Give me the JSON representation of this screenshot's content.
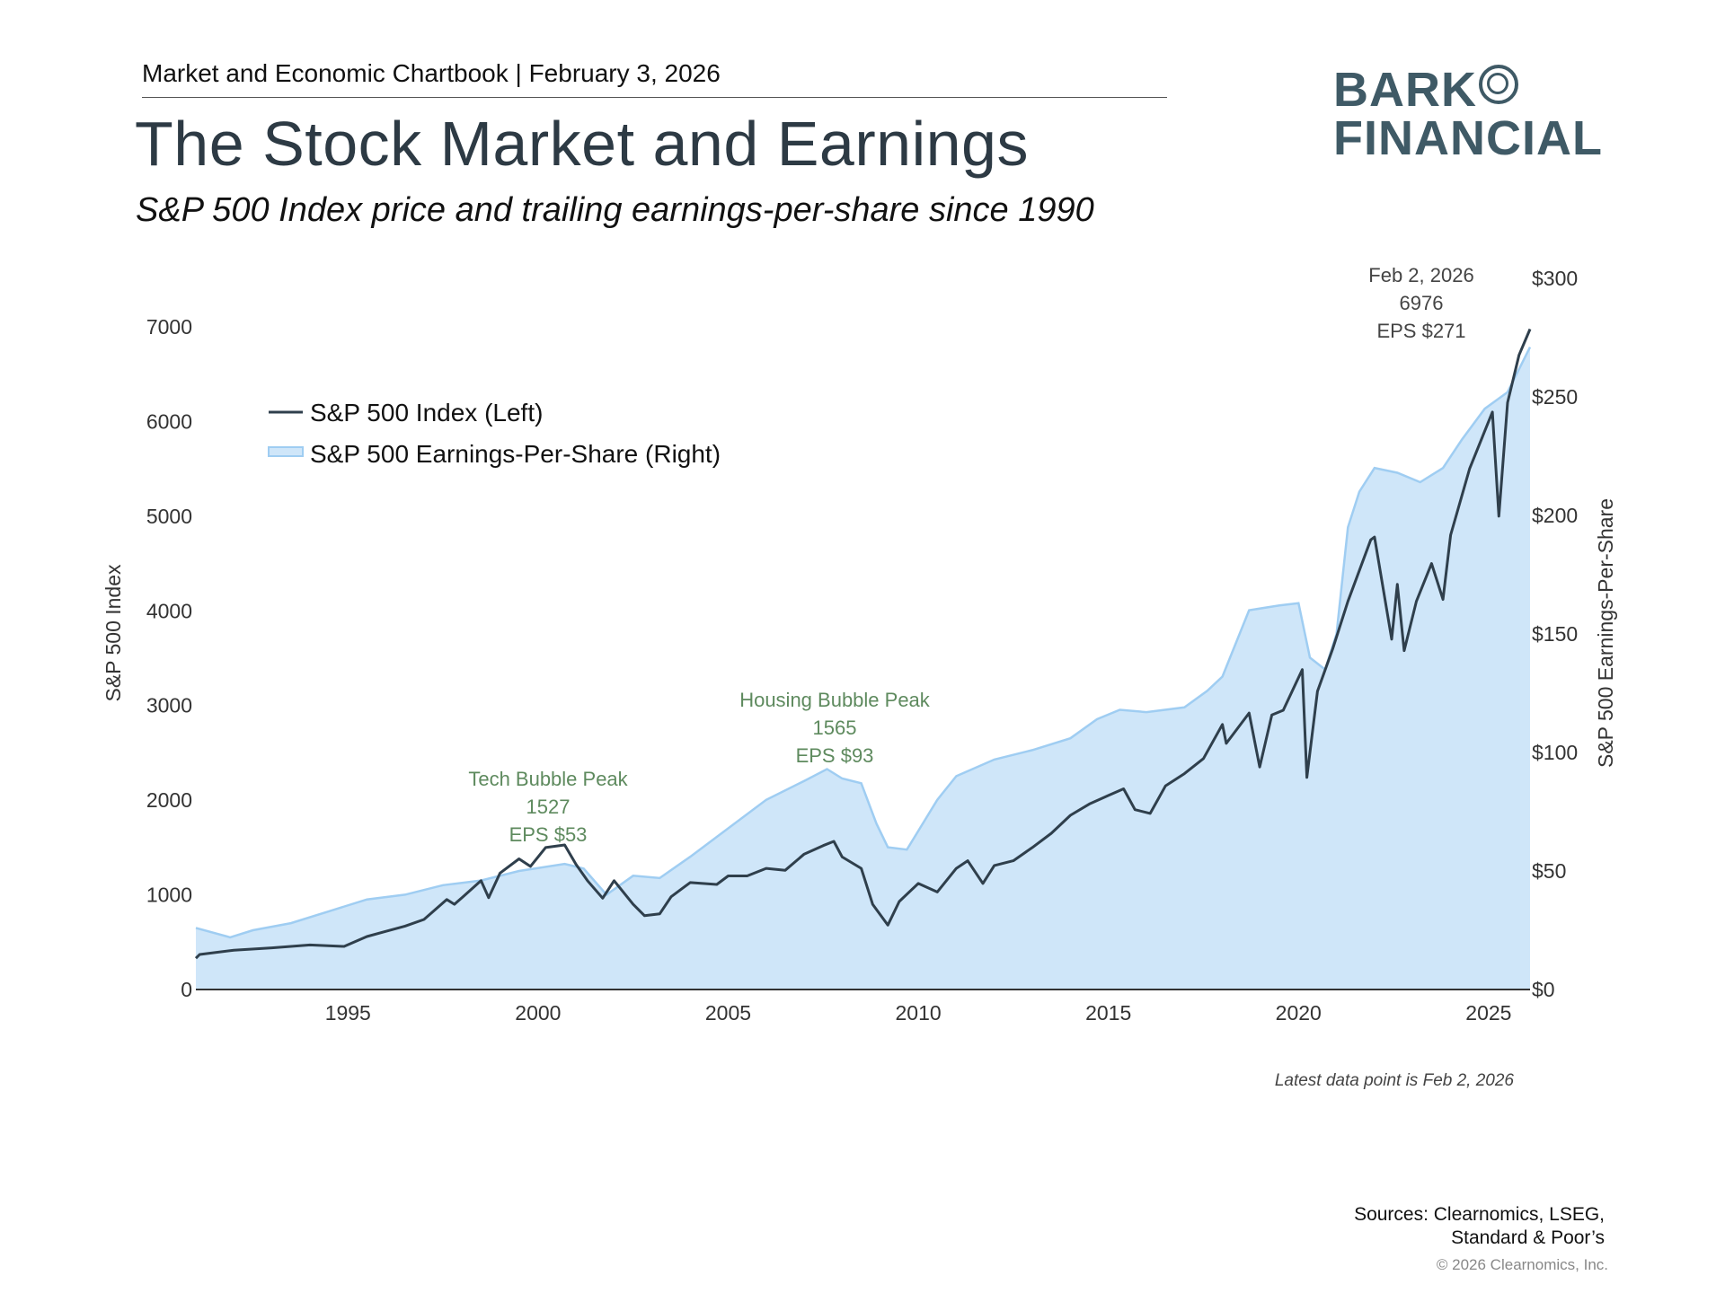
{
  "header": {
    "chartbook": "Market and Economic Chartbook | February 3, 2026",
    "title": "The Stock Market and Earnings",
    "subtitle": "S&P 500 Index price and trailing earnings-per-share since 1990"
  },
  "logo": {
    "line1": "BARK",
    "line2": "FINANCIAL"
  },
  "footer": {
    "latest": "Latest data point is Feb 2, 2026",
    "sources_line1": "Sources: Clearnomics, LSEG,",
    "sources_line2": "Standard & Poor’s",
    "copyright": "© 2026 Clearnomics, Inc."
  },
  "colors": {
    "index_line": "#2f3f4c",
    "eps_fill": "#cfe6f9",
    "eps_line": "#9fcdf2",
    "annotation": "#5e8a5e"
  },
  "chart_data": {
    "type": "line",
    "xlabel": "",
    "ylabel": "S&P 500 Index",
    "ylabel_right": "S&P 500 Earnings-Per-Share",
    "xlim": [
      1991,
      2026.09
    ],
    "ylim": [
      0,
      7000
    ],
    "ylim_right": [
      0,
      300
    ],
    "x_ticks": [
      "1995",
      "2000",
      "2005",
      "2010",
      "2015",
      "2020",
      "2025"
    ],
    "x_tick_values": [
      1995,
      2000,
      2005,
      2010,
      2015,
      2020,
      2025
    ],
    "y_ticks": [
      "0",
      "1000",
      "2000",
      "3000",
      "4000",
      "5000",
      "6000",
      "7000"
    ],
    "y_tick_values": [
      0,
      1000,
      2000,
      3000,
      4000,
      5000,
      6000,
      7000
    ],
    "y_ticks_right": [
      "$0",
      "$50",
      "$100",
      "$150",
      "$200",
      "$250",
      "$300"
    ],
    "y_tick_values_right": [
      0,
      50,
      100,
      150,
      200,
      250,
      300
    ],
    "legend": [
      "S&P 500 Index (Left)",
      "S&P 500 Earnings-Per-Share (Right)"
    ],
    "legend_position": "top-left",
    "grid": false,
    "series": [
      {
        "name": "S&P 500 Index (Left)",
        "axis": "left",
        "x": [
          1991.0,
          1991.1,
          1992,
          1993,
          1994,
          1994.9,
          1995.5,
          1996,
          1996.5,
          1997,
          1997.6,
          1997.8,
          1998,
          1998.5,
          1998.7,
          1999,
          1999.5,
          1999.8,
          2000.2,
          2000.7,
          2001,
          2001.3,
          2001.7,
          2002,
          2002.5,
          2002.8,
          2003.2,
          2003.5,
          2004,
          2004.7,
          2005,
          2005.5,
          2006,
          2006.5,
          2007,
          2007.5,
          2007.78,
          2008,
          2008.5,
          2008.8,
          2009.2,
          2009.5,
          2010,
          2010.5,
          2011,
          2011.3,
          2011.7,
          2012,
          2012.5,
          2013,
          2013.5,
          2014,
          2014.5,
          2015,
          2015.4,
          2015.7,
          2016.1,
          2016.5,
          2017,
          2017.5,
          2018,
          2018.1,
          2018.7,
          2018.98,
          2019.3,
          2019.6,
          2020.1,
          2020.22,
          2020.5,
          2020.9,
          2021.3,
          2021.9,
          2022.0,
          2022.45,
          2022.6,
          2022.78,
          2023.1,
          2023.5,
          2023.8,
          2024,
          2024.5,
          2025.1,
          2025.27,
          2025.5,
          2025.8,
          2026.09
        ],
        "y": [
          330,
          370,
          415,
          440,
          470,
          455,
          560,
          615,
          670,
          740,
          950,
          900,
          970,
          1150,
          970,
          1230,
          1380,
          1300,
          1500,
          1527,
          1320,
          1150,
          965,
          1150,
          900,
          780,
          800,
          980,
          1130,
          1110,
          1200,
          1200,
          1280,
          1260,
          1430,
          1520,
          1565,
          1400,
          1280,
          900,
          680,
          930,
          1120,
          1030,
          1280,
          1360,
          1120,
          1310,
          1360,
          1500,
          1650,
          1840,
          1960,
          2050,
          2120,
          1900,
          1860,
          2150,
          2280,
          2440,
          2800,
          2600,
          2920,
          2350,
          2900,
          2950,
          3380,
          2240,
          3150,
          3600,
          4100,
          4750,
          4780,
          3700,
          4280,
          3580,
          4100,
          4500,
          4120,
          4800,
          5500,
          6100,
          5000,
          6200,
          6700,
          6976
        ]
      },
      {
        "name": "S&P 500 Earnings-Per-Share (Right)",
        "axis": "right",
        "x": [
          1991,
          1991.9,
          1992.5,
          1993.5,
          1994.5,
          1995.5,
          1996.5,
          1997.5,
          1998.5,
          1999.5,
          2000.7,
          2001.2,
          2001.8,
          2002.5,
          2003.2,
          2004,
          2005,
          2006,
          2007,
          2007.6,
          2008,
          2008.5,
          2008.9,
          2009.2,
          2009.7,
          2010.5,
          2011,
          2012,
          2013,
          2014,
          2014.7,
          2015.3,
          2016,
          2017,
          2017.6,
          2018,
          2018.7,
          2019.5,
          2020.0,
          2020.3,
          2020.7,
          2021.0,
          2021.3,
          2021.6,
          2022,
          2022.6,
          2023.2,
          2023.8,
          2024.3,
          2024.9,
          2025.5,
          2026.09
        ],
        "y": [
          26,
          22,
          25,
          28,
          33,
          38,
          40,
          44,
          46,
          50,
          53,
          51,
          40,
          48,
          47,
          56,
          68,
          80,
          88,
          93,
          89,
          87,
          70,
          60,
          59,
          80,
          90,
          97,
          101,
          106,
          114,
          118,
          117,
          119,
          126,
          132,
          160,
          162,
          163,
          140,
          135,
          150,
          195,
          210,
          220,
          218,
          214,
          220,
          232,
          245,
          252,
          271
        ]
      }
    ],
    "annotations": [
      {
        "lines": [
          "Tech Bubble Peak",
          "1527",
          "EPS $53"
        ]
      },
      {
        "lines": [
          "Housing Bubble Peak",
          "1565",
          "EPS $93"
        ]
      },
      {
        "lines": [
          "Feb 2, 2026",
          "6976",
          "EPS $271"
        ]
      }
    ]
  }
}
